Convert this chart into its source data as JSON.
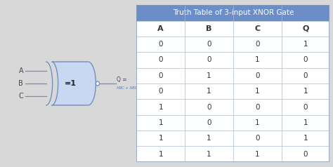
{
  "title": "Truth Table of 3-input XNOR Gate",
  "headers": [
    "A",
    "B",
    "C",
    "Q"
  ],
  "rows": [
    [
      "0",
      "0",
      "0",
      "1"
    ],
    [
      "0",
      "0",
      "1",
      "0"
    ],
    [
      "0",
      "1",
      "0",
      "0"
    ],
    [
      "0",
      "1",
      "1",
      "1"
    ],
    [
      "1",
      "0",
      "0",
      "0"
    ],
    [
      "1",
      "0",
      "1",
      "1"
    ],
    [
      "1",
      "1",
      "0",
      "1"
    ],
    [
      "1",
      "1",
      "1",
      "0"
    ]
  ],
  "header_bg": "#6B8EC8",
  "header_text": "#FFFFFF",
  "row_bg_even": "#FFFFFF",
  "row_bg_odd": "#FFFFFF",
  "cell_text": "#333333",
  "border_color": "#AABBCC",
  "table_border": "#7090B0",
  "fig_bg": "#D8D8D8",
  "gate_body_color": "#C8D8F0",
  "gate_edge_color": "#7090C0",
  "gate_label": "=1",
  "inputs": [
    "A",
    "B",
    "C"
  ],
  "output_label": "Q =",
  "equation": "ABC + ABC + ABC + ABC",
  "title_fontsize": 7.5,
  "cell_fontsize": 7.5,
  "header_fontsize": 8
}
